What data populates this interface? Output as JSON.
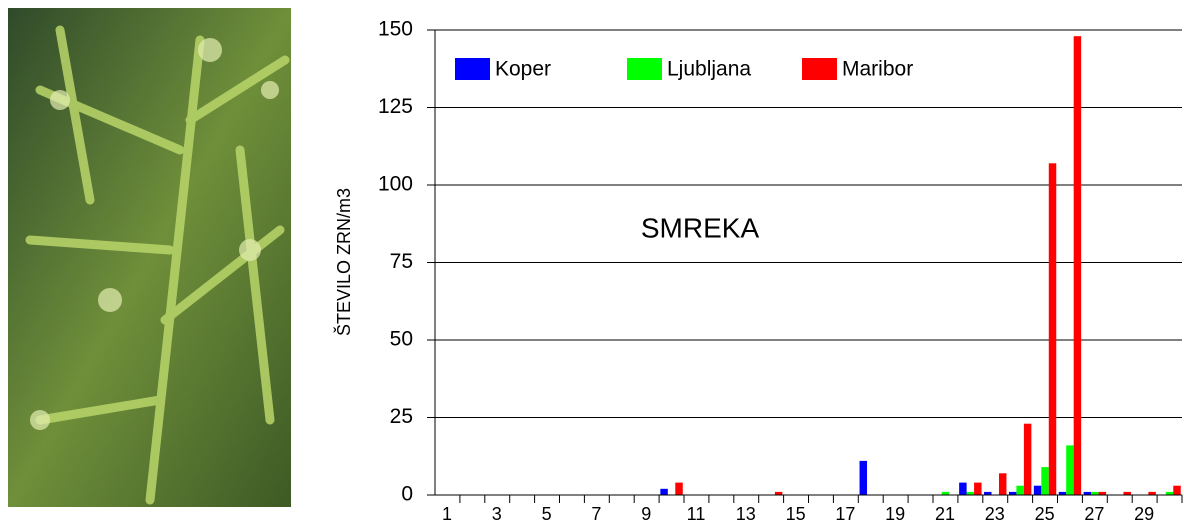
{
  "chart_data": {
    "type": "bar",
    "title": "SMREKA",
    "y_label": "ŠTEVILO ZRN/m3",
    "categories": [
      1,
      null,
      3,
      null,
      5,
      null,
      7,
      null,
      9,
      null,
      11,
      null,
      13,
      null,
      15,
      null,
      17,
      null,
      19,
      null,
      21,
      null,
      23,
      null,
      25,
      null,
      27,
      null,
      29,
      null
    ],
    "series": [
      {
        "name": "Koper",
        "color": "#0000ff",
        "values": [
          0,
          0,
          0,
          0,
          0,
          0,
          0,
          0,
          0,
          2,
          0,
          0,
          0,
          0,
          0,
          0,
          0,
          11,
          0,
          0,
          0,
          4,
          1,
          1,
          3,
          1,
          1,
          0,
          0,
          0
        ]
      },
      {
        "name": "Ljubljana",
        "color": "#00ff00",
        "values": [
          0,
          0,
          0,
          0,
          0,
          0,
          0,
          0,
          0,
          0,
          0,
          0,
          0,
          0,
          0,
          0,
          0,
          0,
          0,
          0,
          1,
          1,
          0,
          3,
          9,
          16,
          1,
          0,
          0,
          1
        ]
      },
      {
        "name": "Maribor",
        "color": "#ff0000",
        "values": [
          0,
          0,
          0,
          0,
          0,
          0,
          0,
          0,
          0,
          4,
          0,
          0,
          0,
          1,
          0,
          0,
          0,
          0,
          0,
          0,
          0,
          4,
          7,
          23,
          107,
          148,
          1,
          1,
          1,
          3
        ]
      }
    ],
    "ylim": [
      0,
      150
    ],
    "yticks": [
      0,
      25,
      50,
      75,
      100,
      125,
      150
    ],
    "grid": true,
    "legend": "top-left"
  }
}
